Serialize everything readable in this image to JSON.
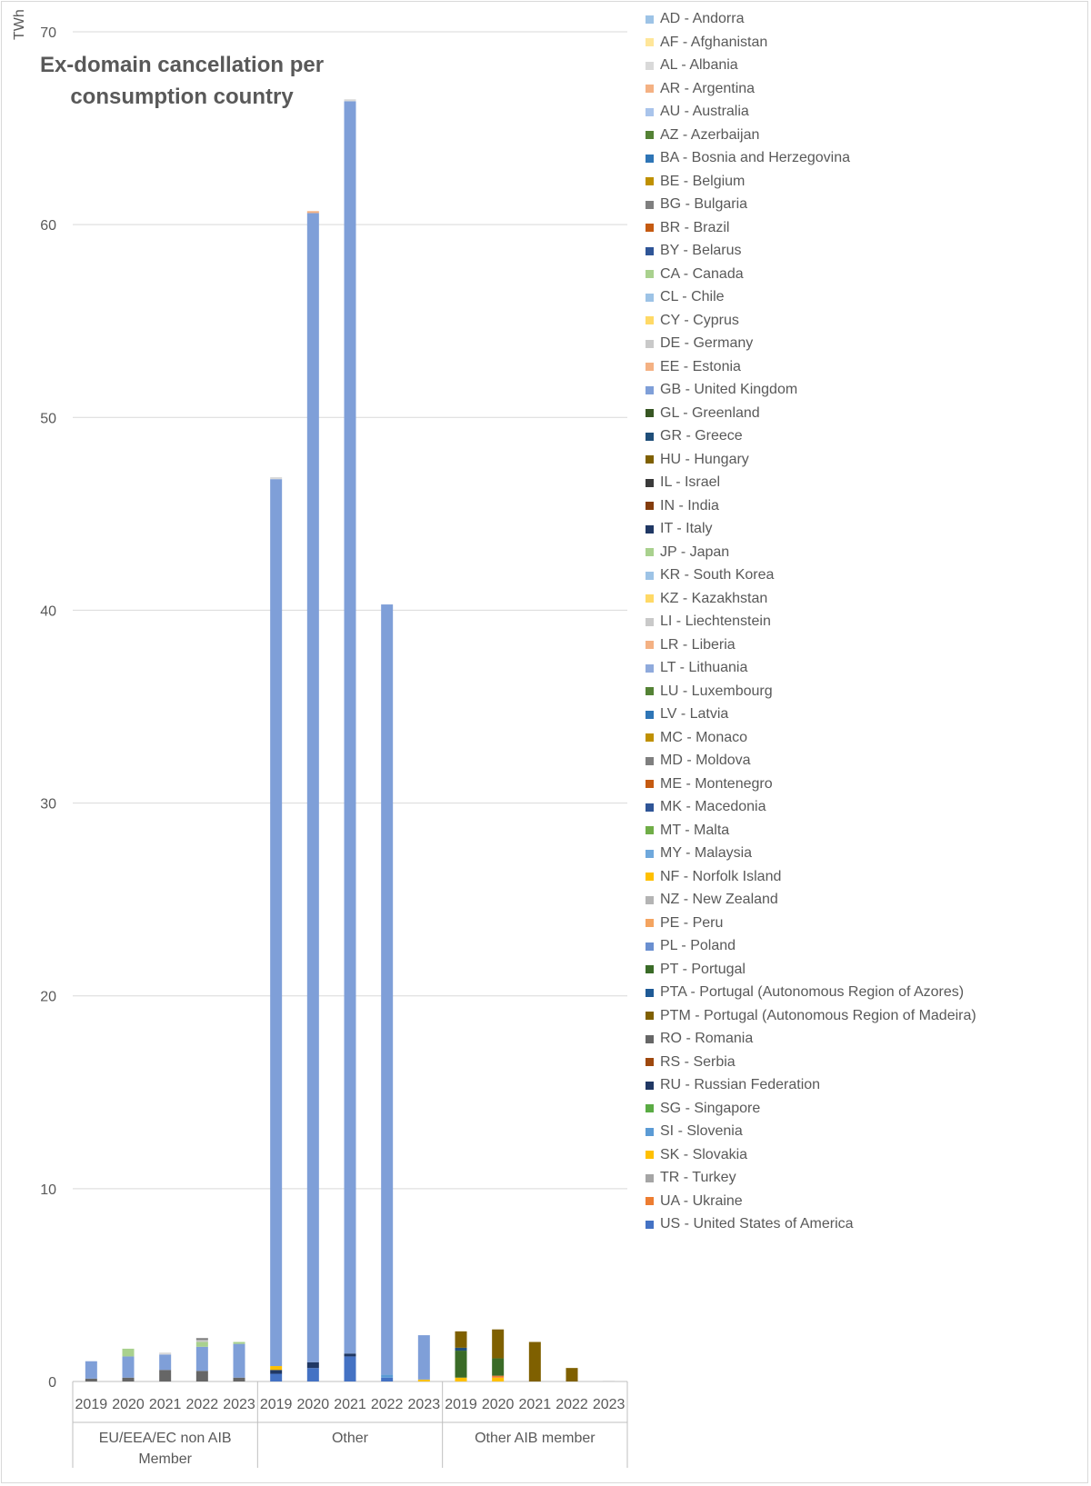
{
  "chart_data": {
    "type": "bar",
    "stacked": true,
    "title": "Ex-domain cancellation per consumption country",
    "ylabel": "TWh",
    "xlabel": "",
    "ylim": [
      0,
      70
    ],
    "yticks": [
      0,
      10,
      20,
      30,
      40,
      50,
      60,
      70
    ],
    "grid": true,
    "legend_position": "right",
    "groups": [
      {
        "label": "EU/EEA/EC non AIB Member",
        "categories": [
          "2019",
          "2020",
          "2021",
          "2022",
          "2023"
        ]
      },
      {
        "label": "Other",
        "categories": [
          "2019",
          "2020",
          "2021",
          "2022",
          "2023"
        ]
      },
      {
        "label": "Other AIB member",
        "categories": [
          "2019",
          "2020",
          "2021",
          "2022",
          "2023"
        ]
      }
    ],
    "legend": [
      {
        "code": "AD",
        "label": "AD - Andorra",
        "color": "#9dc3e6"
      },
      {
        "code": "AF",
        "label": "AF - Afghanistan",
        "color": "#ffe699"
      },
      {
        "code": "AL",
        "label": "AL - Albania",
        "color": "#d9d9d9"
      },
      {
        "code": "AR",
        "label": "AR - Argentina",
        "color": "#f4b183"
      },
      {
        "code": "AU",
        "label": "AU - Australia",
        "color": "#a9c4eb"
      },
      {
        "code": "AZ",
        "label": "AZ - Azerbaijan",
        "color": "#548235"
      },
      {
        "code": "BA",
        "label": "BA - Bosnia and Herzegovina",
        "color": "#2e75b6"
      },
      {
        "code": "BE",
        "label": "BE - Belgium",
        "color": "#bf9000"
      },
      {
        "code": "BG",
        "label": "BG - Bulgaria",
        "color": "#7f7f7f"
      },
      {
        "code": "BR",
        "label": "BR - Brazil",
        "color": "#c55a11"
      },
      {
        "code": "BY",
        "label": "BY - Belarus",
        "color": "#2f5597"
      },
      {
        "code": "CA",
        "label": "CA - Canada",
        "color": "#a9d18e"
      },
      {
        "code": "CL",
        "label": "CL - Chile",
        "color": "#9dc3e6"
      },
      {
        "code": "CY",
        "label": "CY - Cyprus",
        "color": "#ffd966"
      },
      {
        "code": "DE",
        "label": "DE - Germany",
        "color": "#c9c9c9"
      },
      {
        "code": "EE",
        "label": "EE - Estonia",
        "color": "#f4b183"
      },
      {
        "code": "GB",
        "label": "GB - United Kingdom",
        "color": "#7f9fd8"
      },
      {
        "code": "GL",
        "label": "GL - Greenland",
        "color": "#375623"
      },
      {
        "code": "GR",
        "label": "GR - Greece",
        "color": "#1f4e79"
      },
      {
        "code": "HU",
        "label": "HU - Hungary",
        "color": "#7f6000"
      },
      {
        "code": "IL",
        "label": "IL - Israel",
        "color": "#3a3a3a"
      },
      {
        "code": "IN",
        "label": "IN - India",
        "color": "#843c0c"
      },
      {
        "code": "IT",
        "label": "IT - Italy",
        "color": "#203864"
      },
      {
        "code": "JP",
        "label": "JP - Japan",
        "color": "#a9d18e"
      },
      {
        "code": "KR",
        "label": "KR - South Korea",
        "color": "#9dc3e6"
      },
      {
        "code": "KZ",
        "label": "KZ - Kazakhstan",
        "color": "#ffd966"
      },
      {
        "code": "LI",
        "label": "LI - Liechtenstein",
        "color": "#c9c9c9"
      },
      {
        "code": "LR",
        "label": "LR - Liberia",
        "color": "#f4b183"
      },
      {
        "code": "LT",
        "label": "LT - Lithuania",
        "color": "#8faadc"
      },
      {
        "code": "LU",
        "label": "LU - Luxembourg",
        "color": "#548235"
      },
      {
        "code": "LV",
        "label": "LV - Latvia",
        "color": "#2e75b6"
      },
      {
        "code": "MC",
        "label": "MC - Monaco",
        "color": "#bf9000"
      },
      {
        "code": "MD",
        "label": "MD - Moldova",
        "color": "#7f7f7f"
      },
      {
        "code": "ME",
        "label": "ME - Montenegro",
        "color": "#c55a11"
      },
      {
        "code": "MK",
        "label": "MK - Macedonia",
        "color": "#2f5597"
      },
      {
        "code": "MT",
        "label": "MT - Malta",
        "color": "#70ad47"
      },
      {
        "code": "MY",
        "label": "MY - Malaysia",
        "color": "#6fa8dc"
      },
      {
        "code": "NF",
        "label": "NF - Norfolk Island",
        "color": "#ffc000"
      },
      {
        "code": "NZ",
        "label": "NZ - New Zealand",
        "color": "#b4b4b4"
      },
      {
        "code": "PE",
        "label": "PE - Peru",
        "color": "#f4a460"
      },
      {
        "code": "PL",
        "label": "PL - Poland",
        "color": "#6a8fd0"
      },
      {
        "code": "PT",
        "label": "PT - Portugal",
        "color": "#3a6b27"
      },
      {
        "code": "PTA",
        "label": "PTA - Portugal (Autonomous Region of Azores)",
        "color": "#1f5a96"
      },
      {
        "code": "PTM",
        "label": "PTM - Portugal (Autonomous Region of Madeira)",
        "color": "#806000"
      },
      {
        "code": "RO",
        "label": "RO - Romania",
        "color": "#666666"
      },
      {
        "code": "RS",
        "label": "RS - Serbia",
        "color": "#9e480e"
      },
      {
        "code": "RU",
        "label": "RU - Russian Federation",
        "color": "#203864"
      },
      {
        "code": "SG",
        "label": "SG - Singapore",
        "color": "#5aab44"
      },
      {
        "code": "SI",
        "label": "SI - Slovenia",
        "color": "#5b9bd5"
      },
      {
        "code": "SK",
        "label": "SK - Slovakia",
        "color": "#ffc000"
      },
      {
        "code": "TR",
        "label": "TR - Turkey",
        "color": "#a5a5a5"
      },
      {
        "code": "UA",
        "label": "UA - Ukraine",
        "color": "#ed7d31"
      },
      {
        "code": "US",
        "label": "US - United States of America",
        "color": "#4472c4"
      }
    ],
    "bars": [
      {
        "group": "EU/EEA/EC non AIB Member",
        "year": "2019",
        "segments": [
          {
            "code": "RO",
            "value": 0.15
          },
          {
            "code": "GB",
            "value": 0.9
          }
        ]
      },
      {
        "group": "EU/EEA/EC non AIB Member",
        "year": "2020",
        "segments": [
          {
            "code": "RO",
            "value": 0.2
          },
          {
            "code": "GB",
            "value": 1.1
          },
          {
            "code": "CA",
            "value": 0.4
          }
        ]
      },
      {
        "group": "EU/EEA/EC non AIB Member",
        "year": "2021",
        "segments": [
          {
            "code": "RO",
            "value": 0.6
          },
          {
            "code": "GB",
            "value": 0.8
          },
          {
            "code": "AL",
            "value": 0.1
          }
        ]
      },
      {
        "group": "EU/EEA/EC non AIB Member",
        "year": "2022",
        "segments": [
          {
            "code": "RO",
            "value": 0.55
          },
          {
            "code": "GB",
            "value": 1.25
          },
          {
            "code": "CA",
            "value": 0.25
          },
          {
            "code": "DE",
            "value": 0.1
          },
          {
            "code": "BG",
            "value": 0.1
          }
        ]
      },
      {
        "group": "EU/EEA/EC non AIB Member",
        "year": "2023",
        "segments": [
          {
            "code": "RO",
            "value": 0.2
          },
          {
            "code": "GB",
            "value": 1.75
          },
          {
            "code": "CA",
            "value": 0.1
          }
        ]
      },
      {
        "group": "Other",
        "year": "2019",
        "segments": [
          {
            "code": "US",
            "value": 0.4
          },
          {
            "code": "IT",
            "value": 0.2
          },
          {
            "code": "SK",
            "value": 0.2
          },
          {
            "code": "GB",
            "value": 46.0
          },
          {
            "code": "AL",
            "value": 0.1
          }
        ]
      },
      {
        "group": "Other",
        "year": "2020",
        "segments": [
          {
            "code": "US",
            "value": 0.7
          },
          {
            "code": "IT",
            "value": 0.3
          },
          {
            "code": "GB",
            "value": 59.6
          },
          {
            "code": "EE",
            "value": 0.1
          }
        ]
      },
      {
        "group": "Other",
        "year": "2021",
        "segments": [
          {
            "code": "US",
            "value": 1.3
          },
          {
            "code": "IT",
            "value": 0.15
          },
          {
            "code": "GB",
            "value": 64.95
          },
          {
            "code": "AL",
            "value": 0.1
          }
        ]
      },
      {
        "group": "Other",
        "year": "2022",
        "segments": [
          {
            "code": "US",
            "value": 0.2
          },
          {
            "code": "SI",
            "value": 0.15
          },
          {
            "code": "GB",
            "value": 39.95
          }
        ]
      },
      {
        "group": "Other",
        "year": "2023",
        "segments": [
          {
            "code": "SK",
            "value": 0.1
          },
          {
            "code": "GB",
            "value": 2.3
          }
        ]
      },
      {
        "group": "Other AIB member",
        "year": "2019",
        "segments": [
          {
            "code": "SK",
            "value": 0.2
          },
          {
            "code": "PT",
            "value": 1.4
          },
          {
            "code": "GR",
            "value": 0.15
          },
          {
            "code": "HU",
            "value": 0.85
          }
        ]
      },
      {
        "group": "Other AIB member",
        "year": "2020",
        "segments": [
          {
            "code": "SK",
            "value": 0.2
          },
          {
            "code": "UA",
            "value": 0.1
          },
          {
            "code": "PT",
            "value": 0.9
          },
          {
            "code": "HU",
            "value": 1.5
          }
        ]
      },
      {
        "group": "Other AIB member",
        "year": "2021",
        "segments": [
          {
            "code": "HU",
            "value": 2.05
          }
        ]
      },
      {
        "group": "Other AIB member",
        "year": "2022",
        "segments": [
          {
            "code": "HU",
            "value": 0.7
          }
        ]
      },
      {
        "group": "Other AIB member",
        "year": "2023",
        "segments": [
          {
            "code": "AL",
            "value": 0.05
          }
        ]
      }
    ]
  }
}
